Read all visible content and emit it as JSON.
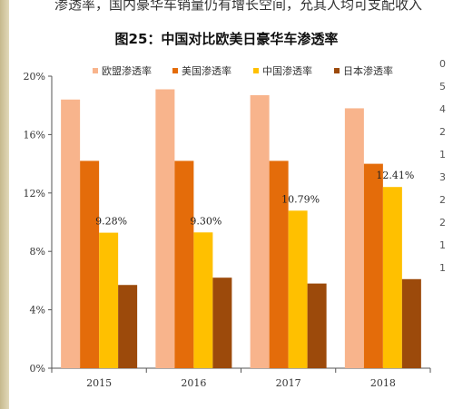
{
  "context_text": "渗透率，国内豪华车销量仍有增长空间，允其人均可支配收入",
  "figure_title": "图25：中国对比欧美日豪华车渗透率",
  "right_fragments": [
    "0",
    "5",
    "4",
    "2",
    "1",
    "3",
    "2",
    "2",
    "1",
    "1"
  ],
  "colors": {
    "eu": "#f8b48c",
    "us": "#e46c0a",
    "cn": "#ffc000",
    "jp": "#9c4a0b",
    "axis": "#555555"
  },
  "chart_data": {
    "type": "bar",
    "categories": [
      "2015",
      "2016",
      "2017",
      "2018"
    ],
    "series": [
      {
        "name": "欧盟渗透率",
        "values": [
          18.4,
          19.1,
          18.7,
          17.8
        ]
      },
      {
        "name": "美国渗透率",
        "values": [
          14.2,
          14.2,
          14.2,
          14.0
        ]
      },
      {
        "name": "中国渗透率",
        "values": [
          9.28,
          9.3,
          10.79,
          12.41
        ]
      },
      {
        "name": "日本渗透率",
        "values": [
          5.7,
          6.2,
          5.8,
          6.1
        ]
      }
    ],
    "data_labels": {
      "series": "中国渗透率",
      "labels": [
        "9.28%",
        "9.30%",
        "10.79%",
        "12.41%"
      ]
    },
    "ylim": [
      0,
      20
    ],
    "yticks": [
      0,
      4,
      8,
      12,
      16,
      20
    ],
    "ytick_labels": [
      "0%",
      "4%",
      "8%",
      "12%",
      "16%",
      "20%"
    ],
    "xlabel": "",
    "ylabel": "",
    "grid": false,
    "legend": "top"
  }
}
